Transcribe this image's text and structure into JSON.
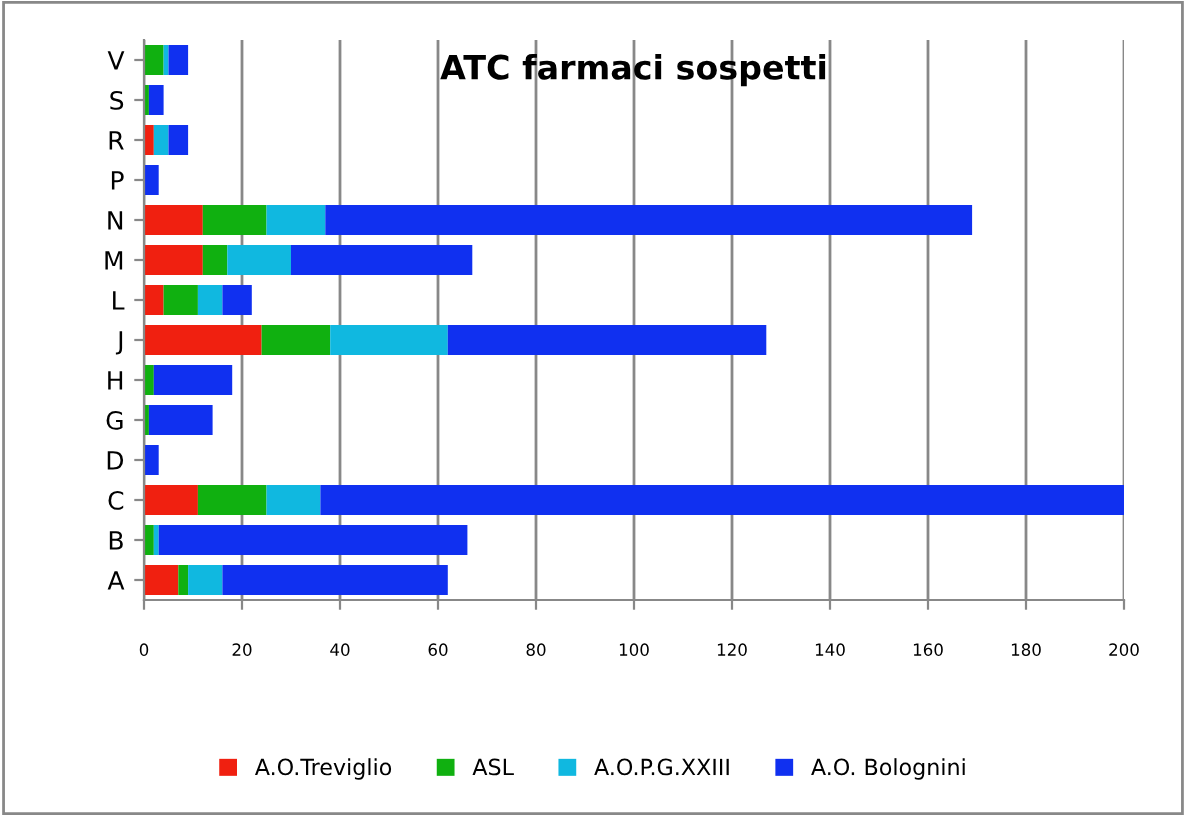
{
  "chart_data": {
    "type": "bar",
    "orientation": "horizontal",
    "stacked": true,
    "title": "ATC farmaci sospetti",
    "categories": [
      "V",
      "S",
      "R",
      "P",
      "N",
      "M",
      "L",
      "J",
      "H",
      "G",
      "D",
      "C",
      "B",
      "A"
    ],
    "series": [
      {
        "name": "A.O.Treviglio",
        "color": "#f02010",
        "values": [
          0,
          0,
          2,
          0,
          12,
          12,
          4,
          24,
          0,
          0,
          0,
          11,
          0,
          7
        ]
      },
      {
        "name": "ASL",
        "color": "#10b010",
        "values": [
          4,
          1,
          0,
          0,
          13,
          5,
          7,
          14,
          2,
          1,
          0,
          14,
          2,
          2
        ]
      },
      {
        "name": "A.O.P.G.XXIII",
        "color": "#10b8e0",
        "values": [
          1,
          0,
          3,
          0,
          12,
          13,
          5,
          24,
          0,
          0,
          0,
          11,
          1,
          7
        ]
      },
      {
        "name": "A.O. Bolognini",
        "color": "#1030f0",
        "values": [
          4,
          3,
          4,
          3,
          132,
          37,
          6,
          65,
          16,
          13,
          3,
          164,
          63,
          46
        ]
      }
    ],
    "xlim": [
      0,
      200
    ],
    "xticks": [
      0,
      20,
      40,
      60,
      80,
      100,
      120,
      140,
      160,
      180,
      200
    ],
    "grid": "x",
    "legend": "bottom"
  }
}
